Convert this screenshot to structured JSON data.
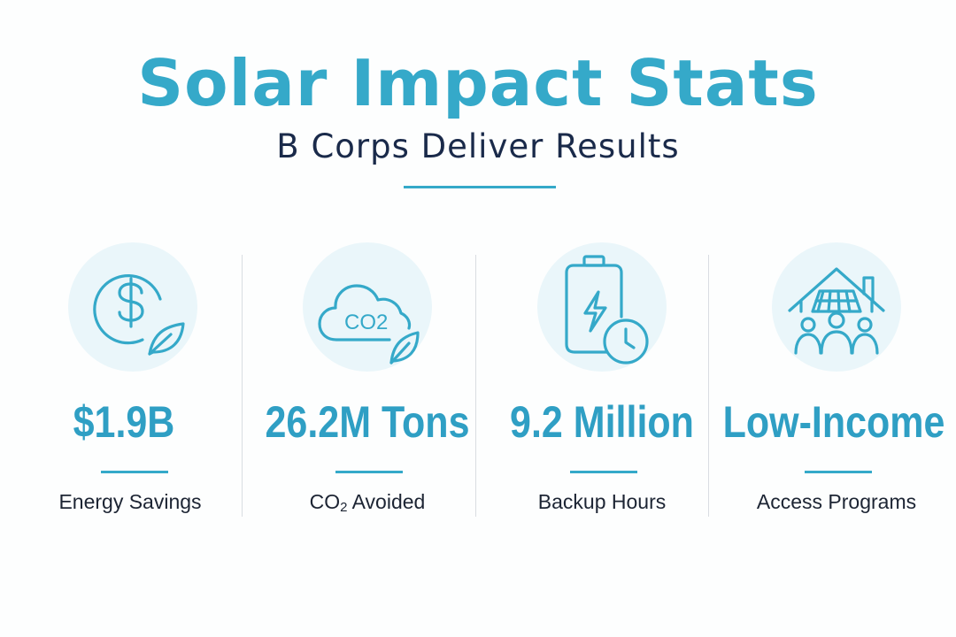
{
  "header": {
    "title": "Solar Impact Stats",
    "subtitle": "B Corps Deliver Results"
  },
  "colors": {
    "accent": "#35a9c9",
    "icon_bg": "#eaf6fa",
    "subtitle_text": "#1a2a4a",
    "label_text": "#1c2433",
    "divider": "#d9dde2"
  },
  "stats": [
    {
      "icon": "dollar-coin-leaf-icon",
      "value": "$1.9B",
      "label": "Energy Savings"
    },
    {
      "icon": "co2-cloud-leaf-icon",
      "icon_text": "CO2",
      "value": "26.2M Tons",
      "label_main": "CO",
      "label_sub": "2",
      "label_rest": " Avoided"
    },
    {
      "icon": "battery-bolt-clock-icon",
      "value": "9.2 Million",
      "label": "Backup Hours"
    },
    {
      "icon": "solar-house-community-icon",
      "value": "Low-Income",
      "label": "Access Programs"
    }
  ]
}
